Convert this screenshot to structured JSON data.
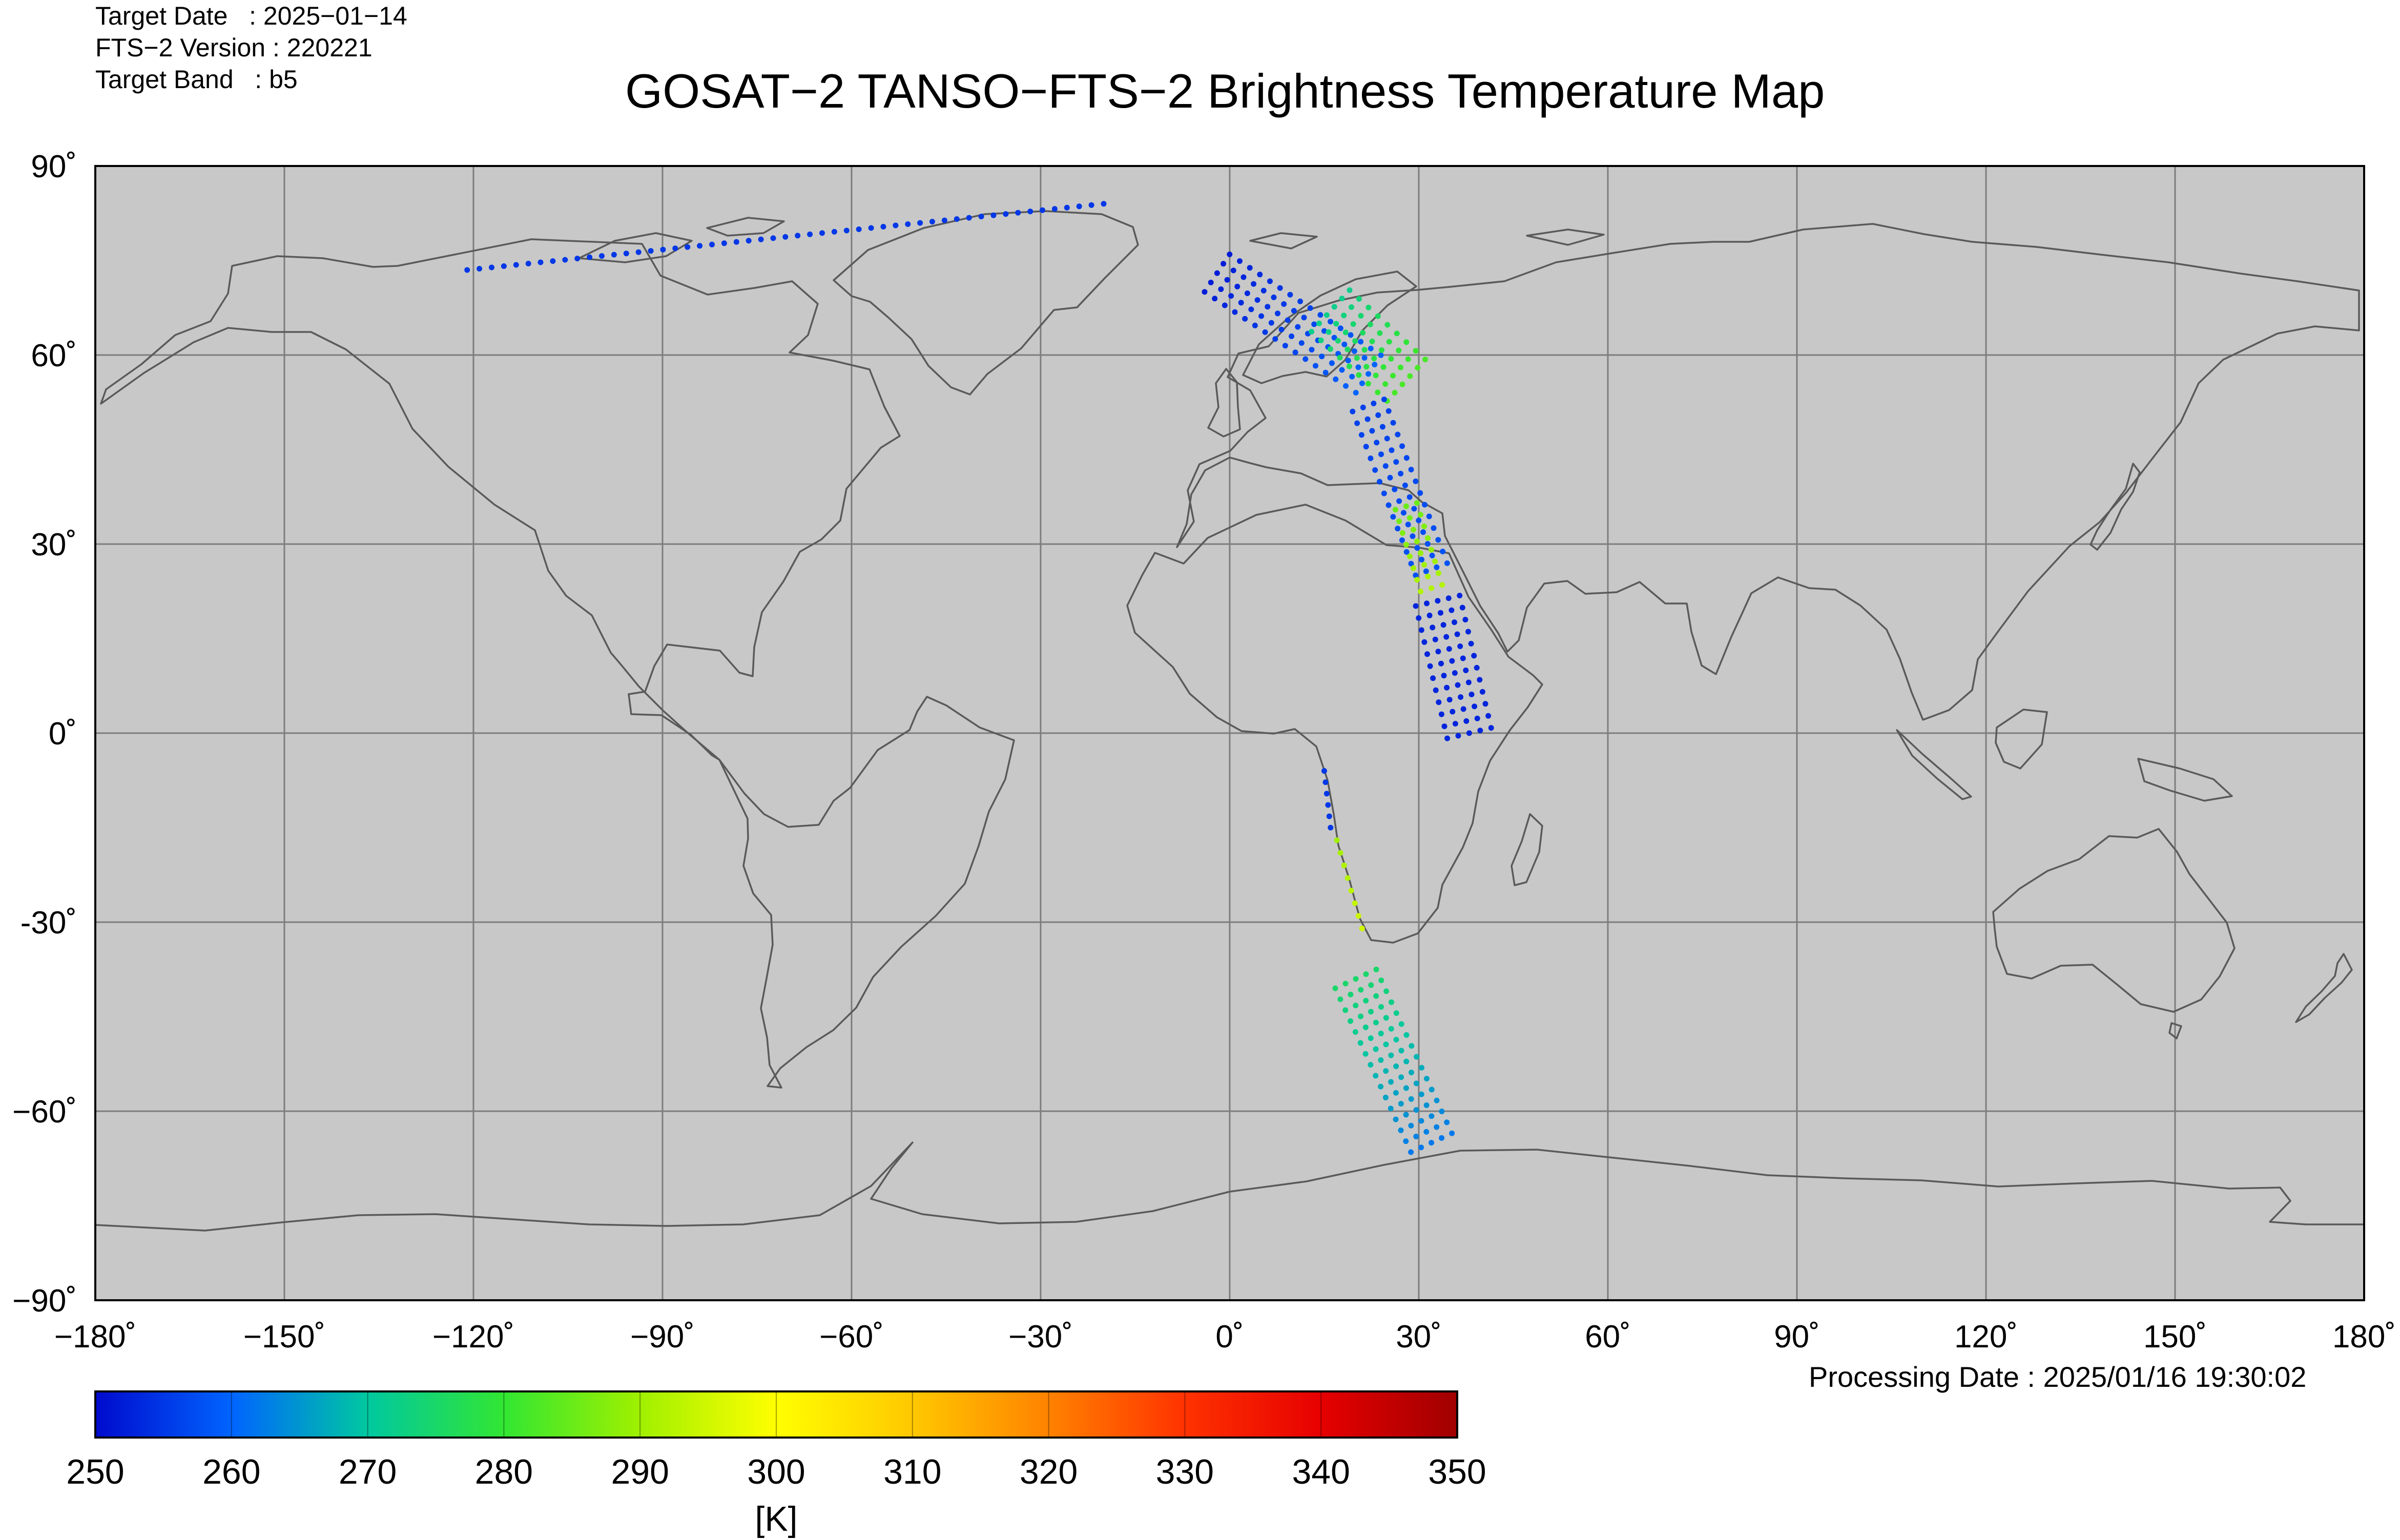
{
  "header": {
    "target_date": "Target Date   : 2025−01−14",
    "version": "FTS−2 Version : 220221",
    "band": "Target Band   : b5"
  },
  "title": "GOSAT−2 TANSO−FTS−2 Brightness Temperature Map",
  "processing_date": "Processing Date : 2025/01/16 19:30:02",
  "map": {
    "lon_range": [
      -180,
      180
    ],
    "lat_range": [
      -90,
      90
    ],
    "lon_ticks": [
      "−180˚",
      "−150˚",
      "−120˚",
      "−90˚",
      "−60˚",
      "−30˚",
      "0˚",
      "30˚",
      "60˚",
      "90˚",
      "120˚",
      "150˚",
      "180˚"
    ],
    "lat_ticks": [
      "90˚",
      "60˚",
      "30˚",
      "0˚",
      "-30˚",
      "−60˚",
      "−90˚"
    ],
    "grid": true,
    "background_color": "#c8c8c8",
    "coastline_color": "#5a5a5a",
    "grid_color": "#7d7d7d"
  },
  "colorbar": {
    "ticks": [
      "250",
      "260",
      "270",
      "280",
      "290",
      "300",
      "310",
      "320",
      "330",
      "340",
      "350"
    ],
    "unit": "[K]",
    "range": [
      250,
      350
    ]
  },
  "chart_data": {
    "type": "scatter",
    "color_variable": "Brightness Temperature",
    "color_range": [
      250,
      350
    ],
    "tracks": [
      {
        "lon": [
          -121,
          -20
        ],
        "lat": [
          73.5,
          84
        ],
        "temp": [
          255,
          255
        ],
        "columns": 1
      },
      {
        "lon": [
          -2,
          22
        ],
        "lat": [
          73,
          57
        ],
        "temp": [
          252,
          260
        ],
        "columns": 5
      },
      {
        "lon": [
          16,
          28
        ],
        "lat": [
          67,
          56
        ],
        "temp": [
          272,
          282
        ],
        "columns": 6
      },
      {
        "lon": [
          22,
          32
        ],
        "lat": [
          52,
          26
        ],
        "temp": [
          256,
          258
        ],
        "columns": 4
      },
      {
        "lon": [
          28,
          32
        ],
        "lat": [
          36,
          23
        ],
        "temp": [
          285,
          292
        ],
        "columns": 3
      },
      {
        "lon": [
          33,
          38
        ],
        "lat": [
          21,
          0
        ],
        "temp": [
          253,
          253
        ],
        "columns": 5
      },
      {
        "lon": [
          15,
          16
        ],
        "lat": [
          -6,
          -15
        ],
        "temp": [
          255,
          255
        ],
        "columns": 1
      },
      {
        "lon": [
          17,
          21
        ],
        "lat": [
          -17,
          -31
        ],
        "temp": [
          290,
          295
        ],
        "columns": 1
      },
      {
        "lon": [
          20,
          32
        ],
        "lat": [
          -39,
          -65
        ],
        "temp": [
          275,
          262
        ],
        "columns": 5
      }
    ]
  }
}
